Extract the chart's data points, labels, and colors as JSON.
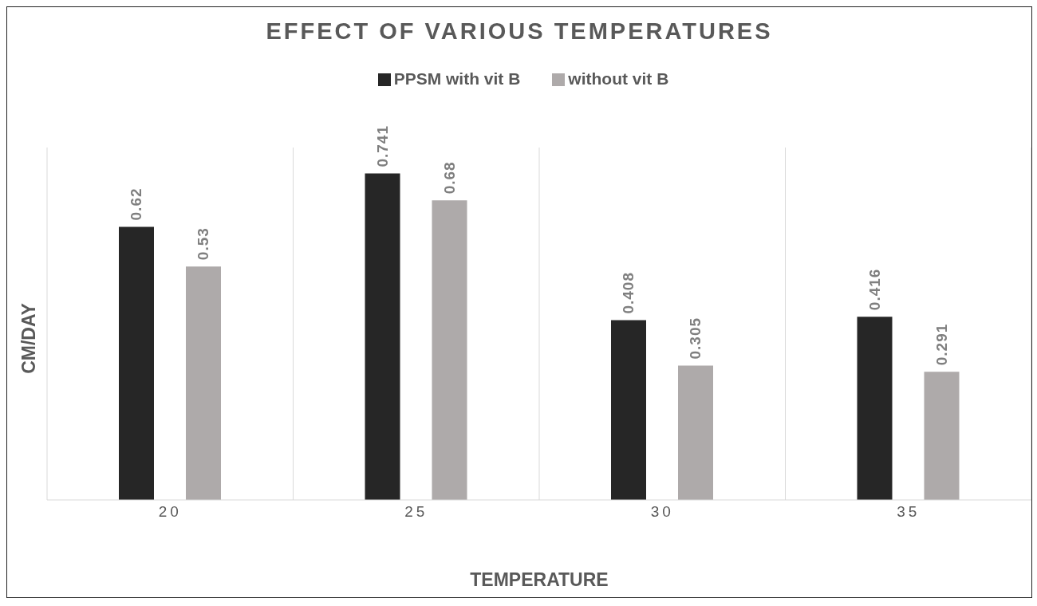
{
  "chart_data": {
    "type": "bar",
    "title": "EFFECT OF VARIOUS TEMPERATURES",
    "xlabel": "TEMPERATURE",
    "ylabel": "CM/DAY",
    "categories": [
      "20",
      "25",
      "30",
      "35"
    ],
    "series": [
      {
        "name": "PPSM with vit B",
        "color": "#262626",
        "values": [
          0.62,
          0.741,
          0.408,
          0.416
        ]
      },
      {
        "name": "without vit B",
        "color": "#aeaaaa",
        "values": [
          0.53,
          0.68,
          0.305,
          0.291
        ]
      }
    ],
    "ylim": [
      0,
      0.8
    ],
    "grid": "x",
    "legend": "top",
    "data_labels": true,
    "tick_labels": "x"
  }
}
